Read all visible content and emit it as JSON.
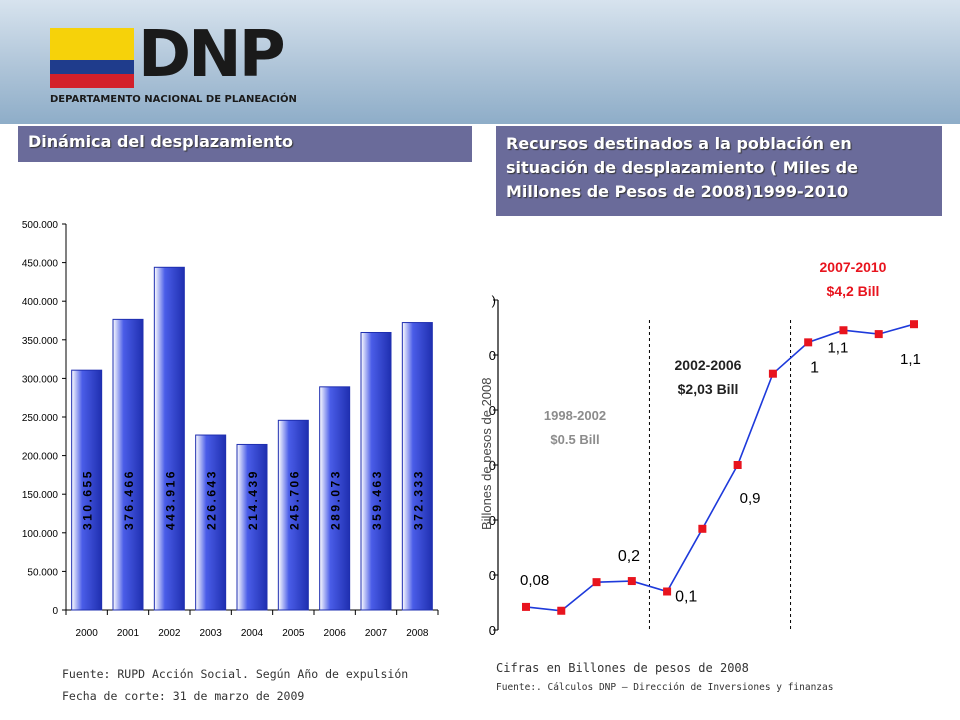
{
  "logo": {
    "wordmark": "DNP",
    "subtitle": "DEPARTAMENTO NACIONAL DE PLANEACIÓN"
  },
  "left_panel": {
    "title": "Dinámica del desplazamiento",
    "source": "Fuente: RUPD Acción Social. Según Año de expulsión",
    "cutoff": "Fecha de corte: 31 de marzo de 2009"
  },
  "right_panel": {
    "title": "Recursos destinados a la población en situación de desplazamiento ( Miles de Millones de Pesos de 2008)1999-2010",
    "footnote": "Cifras en Billones de pesos de 2008",
    "source": "Fuente:. Cálculos DNP – Dirección de Inversiones y finanzas"
  },
  "colors": {
    "bar_fill": "#4a5de8",
    "line": "#1e3adb",
    "marker": "#e8141e",
    "period_red": "#e8141e",
    "period_gray": "#8c8c8c",
    "title_bg": "#6a6b9a"
  },
  "chart_data": [
    {
      "type": "bar",
      "categories": [
        "2000",
        "2001",
        "2002",
        "2003",
        "2004",
        "2005",
        "2006",
        "2007",
        "2008"
      ],
      "values": [
        310655,
        376466,
        443916,
        226643,
        214439,
        245706,
        289073,
        359463,
        372333
      ],
      "value_labels": [
        "310.655",
        "376.466",
        "443.916",
        "226.643",
        "214.439",
        "245.706",
        "289.073",
        "359.463",
        "372.333"
      ],
      "y_ticks": [
        "0",
        "50.000",
        "100.000",
        "150.000",
        "200.000",
        "250.000",
        "300.000",
        "350.000",
        "400.000",
        "450.000",
        "500.000"
      ],
      "ylim": [
        0,
        500000
      ],
      "title": "",
      "xlabel": "",
      "ylabel": "",
      "grid": false
    },
    {
      "type": "line",
      "ylabel": "Billones de pesos de 2008",
      "series": [
        {
          "values": [
            0.042,
            0.035,
            0.087,
            0.089,
            0.07,
            0.184,
            0.3,
            0.466,
            0.523,
            0.545,
            0.538,
            0.556
          ]
        }
      ],
      "ylim": [
        0,
        0.6
      ],
      "y_ticks": [
        ")",
        "0",
        "0",
        "0",
        "0",
        "0",
        "0"
      ],
      "grid": false,
      "data_labels": [
        "0,08",
        "0,2",
        "0,1",
        "0,9",
        "1",
        "1,1",
        "1,1"
      ],
      "periods": [
        {
          "label": "1998-2002",
          "amount": "$0.5 Bill",
          "color": "gray"
        },
        {
          "label": "2002-2006",
          "amount": "$2,03 Bill",
          "color": "black"
        },
        {
          "label": "2007-2010",
          "amount": "$4,2 Bill",
          "color": "red"
        }
      ]
    }
  ]
}
